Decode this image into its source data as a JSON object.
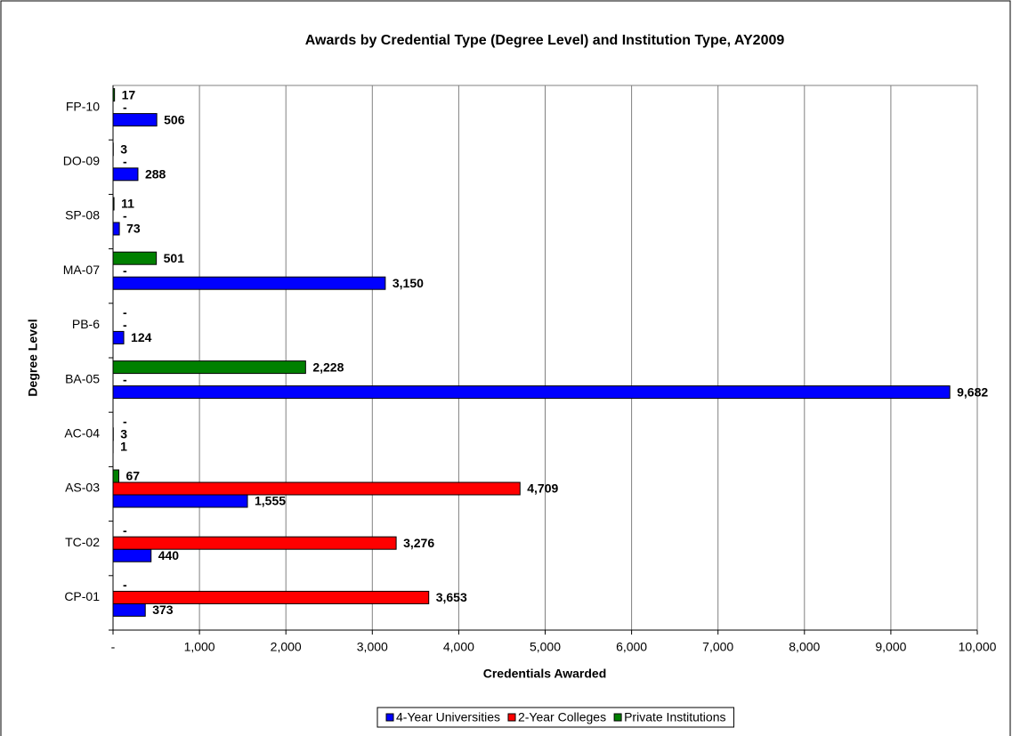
{
  "chart_data": {
    "type": "hbar",
    "title": "Awards by Credential Type (Degree Level) and Institution Type, AY2009",
    "xlabel": "Credentials Awarded",
    "ylabel": "Degree Level",
    "categories": [
      "CP-01",
      "TC-02",
      "AS-03",
      "AC-04",
      "BA-05",
      "PB-6",
      "MA-07",
      "SP-08",
      "DO-09",
      "FP-10"
    ],
    "series": [
      {
        "name": "4-Year Universities",
        "color": "#0000ff",
        "values": [
          373,
          440,
          1555,
          1,
          9682,
          124,
          3150,
          73,
          288,
          506
        ],
        "value_labels": [
          "373",
          "440",
          "1,555",
          "1",
          "9,682",
          "124",
          "3,150",
          "73",
          "288",
          "506"
        ]
      },
      {
        "name": "2-Year Colleges",
        "color": "#ff0000",
        "values": [
          3653,
          3276,
          4709,
          3,
          0,
          0,
          0,
          0,
          0,
          0
        ],
        "value_labels": [
          "3,653",
          "3,276",
          "4,709",
          "3",
          "-",
          "-",
          "-",
          "-",
          "-",
          "-"
        ]
      },
      {
        "name": "Private Institutions",
        "color": "#008000",
        "values": [
          0,
          0,
          67,
          0,
          2228,
          0,
          501,
          11,
          3,
          17
        ],
        "value_labels": [
          "-",
          "-",
          "67",
          "-",
          "2,228",
          "-",
          "501",
          "11",
          "3",
          "17"
        ]
      }
    ],
    "xlim": [
      0,
      10000
    ],
    "xticks": [
      {
        "value": 0,
        "label": "-"
      },
      {
        "value": 1000,
        "label": "1,000"
      },
      {
        "value": 2000,
        "label": "2,000"
      },
      {
        "value": 3000,
        "label": "3,000"
      },
      {
        "value": 4000,
        "label": "4,000"
      },
      {
        "value": 5000,
        "label": "5,000"
      },
      {
        "value": 6000,
        "label": "6,000"
      },
      {
        "value": 7000,
        "label": "7,000"
      },
      {
        "value": 8000,
        "label": "8,000"
      },
      {
        "value": 9000,
        "label": "9,000"
      },
      {
        "value": 10000,
        "label": "10,000"
      }
    ],
    "grid": true,
    "legend": "bottom"
  }
}
